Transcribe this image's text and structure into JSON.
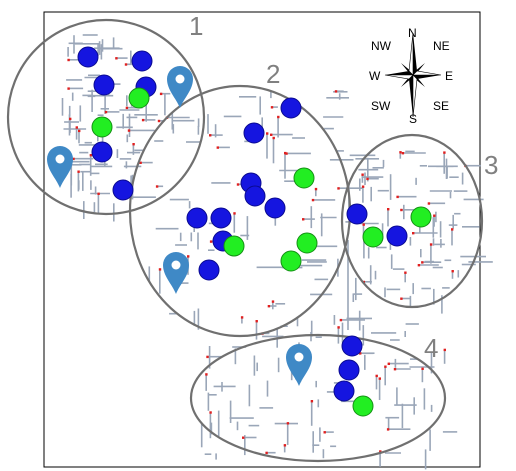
{
  "map": {
    "zones": [
      {
        "label": "1"
      },
      {
        "label": "2"
      },
      {
        "label": "3"
      },
      {
        "label": "4"
      }
    ],
    "compass": {
      "north": "N",
      "south": "S",
      "east": "E",
      "west": "W",
      "northwest": "NW",
      "northeast": "NE",
      "southwest": "SW",
      "southeast": "SE"
    },
    "legend_colors": {
      "zone_outline": "#707070",
      "blue_marker": "#1515e0",
      "green_marker": "#22ee22",
      "pin": "#3f89c6",
      "street": "#9aa6b8",
      "street_point": "#e02020"
    },
    "marker_counts": {
      "zone_1": {
        "blue": 6,
        "green": 2
      },
      "zone_2": {
        "blue": 9,
        "green": 4
      },
      "zone_3": {
        "blue": 2,
        "green": 2
      },
      "zone_4": {
        "blue": 3,
        "green": 1
      }
    },
    "pins": 4
  }
}
